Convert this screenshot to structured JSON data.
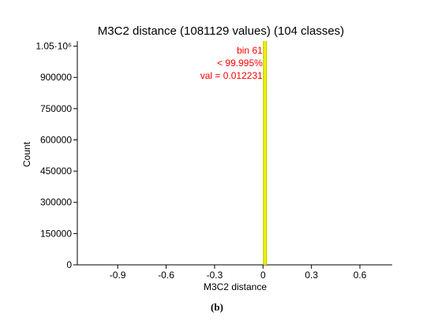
{
  "chart_data": {
    "type": "bar",
    "title": "M3C2 distance (1081129 values)  (104 classes)",
    "xlabel": "M3C2 distance",
    "ylabel": "Count",
    "xlim": [
      -1.15,
      0.8
    ],
    "ylim": [
      0,
      1075000
    ],
    "x_ticks": [
      "-0.9",
      "-0.6",
      "-0.3",
      "0",
      "0.3",
      "0.6"
    ],
    "x_tick_values": [
      -0.9,
      -0.6,
      -0.3,
      0,
      0.3,
      0.6
    ],
    "y_ticks": [
      "0",
      "150000",
      "300000",
      "450000",
      "600000",
      "750000",
      "900000",
      "1.05·10⁶"
    ],
    "y_tick_values": [
      0,
      150000,
      300000,
      450000,
      600000,
      750000,
      900000,
      1050000
    ],
    "bins": [
      {
        "x": 0.0122,
        "value": 1075000,
        "highlighted": true
      }
    ],
    "annotation": {
      "lines": [
        "bin 61",
        "< 99.995%",
        "val = 0.012231"
      ],
      "color": "#ff0000"
    },
    "bar_color": "#c8d400",
    "highlight_color": "#ffff00",
    "grid": false
  },
  "caption": "(b)"
}
